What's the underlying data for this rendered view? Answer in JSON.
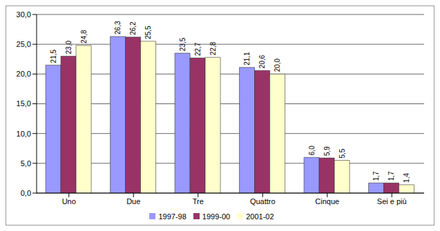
{
  "chart_data": {
    "type": "bar",
    "categories": [
      "Uno",
      "Due",
      "Tre",
      "Quattro",
      "Cinque",
      "Sei e più"
    ],
    "series": [
      {
        "name": "1997-98",
        "color": "#9999ff",
        "values": [
          21.5,
          26.3,
          23.5,
          21.1,
          6.0,
          1.7
        ],
        "value_labels": [
          "21,5",
          "26,3",
          "23,5",
          "21,1",
          "6,0",
          "1,7"
        ]
      },
      {
        "name": "1999-00",
        "color": "#993366",
        "values": [
          23.0,
          26.2,
          22.7,
          20.6,
          5.9,
          1.7
        ],
        "value_labels": [
          "23,0",
          "26,2",
          "22,7",
          "20,6",
          "5,9",
          "1,7"
        ]
      },
      {
        "name": "2001-02",
        "color": "#ffffcc",
        "values": [
          24.8,
          25.5,
          22.8,
          20.0,
          5.5,
          1.4
        ],
        "value_labels": [
          "24,8",
          "25,5",
          "22,8",
          "20,0",
          "5,5",
          "1,4"
        ]
      }
    ],
    "ylim": [
      0,
      30
    ],
    "yticks": [
      {
        "value": 0,
        "label": "0,0"
      },
      {
        "value": 5,
        "label": "5,0"
      },
      {
        "value": 10,
        "label": "10,0"
      },
      {
        "value": 15,
        "label": "15,0"
      },
      {
        "value": 20,
        "label": "20,0"
      },
      {
        "value": 25,
        "label": "25,0"
      },
      {
        "value": 30,
        "label": "30,0"
      }
    ],
    "grid": true,
    "legend": "bottom",
    "data_labels": true
  }
}
